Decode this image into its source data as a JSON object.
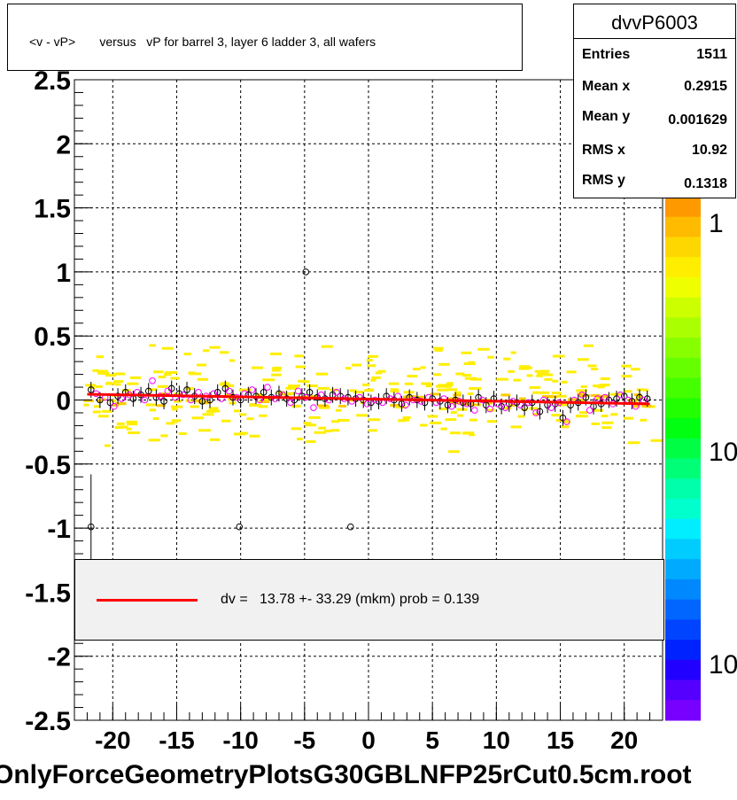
{
  "title": "<v - vP>       versus   vP for barrel 3, layer 6 ladder 3, all wafers",
  "stats": {
    "name": "dvvP6003",
    "rows": [
      {
        "label": "Entries",
        "value": "1511"
      },
      {
        "label": "Mean x",
        "value": "0.2915"
      },
      {
        "label": "Mean y",
        "value": "0.001629"
      },
      {
        "label": "RMS x",
        "value": "10.92"
      },
      {
        "label": "RMS y",
        "value": "0.1318"
      }
    ]
  },
  "legend": {
    "fit_label": "dv =   13.78 +- 33.29 (mkm) prob = 0.139",
    "fit_color": "#ff0000"
  },
  "footer": "OnlyForceGeometryPlotsG30GBLNFP25rCut0.5cm.root",
  "chart_data": {
    "type": "scatter",
    "title": "<v - vP>       versus   vP for barrel 3, layer 6 ladder 3, all wafers",
    "xlim": [
      -23,
      23
    ],
    "ylim": [
      -2.5,
      2.5
    ],
    "x_ticks": [
      "-20",
      "-15",
      "-10",
      "-5",
      "0",
      "5",
      "10",
      "15",
      "20"
    ],
    "y_ticks": [
      "2.5",
      "2",
      "1.5",
      "1",
      "0.5",
      "0",
      "-0.5",
      "-1",
      "-1.5",
      "-2",
      "-2.5"
    ],
    "grid": true,
    "palette_labels": [
      "1",
      "10",
      "10"
    ],
    "fit_line": {
      "x": [
        -22,
        22
      ],
      "y": [
        0.045,
        -0.03
      ],
      "color": "#ff0000"
    },
    "profile_black": {
      "x": [
        -21.7,
        -21,
        -20.2,
        -19.6,
        -19,
        -18.4,
        -17.8,
        -17.2,
        -16.6,
        -16,
        -15.4,
        -14.8,
        -14.2,
        -13.6,
        -13,
        -12.4,
        -11.8,
        -11.2,
        -10.6,
        -10,
        -9.4,
        -8.8,
        -8.2,
        -7.6,
        -7,
        -6.4,
        -5.8,
        -5.2,
        -4.6,
        -4,
        -3.4,
        -2.8,
        -2.2,
        -1.6,
        -1,
        -0.4,
        0.2,
        0.8,
        1.4,
        2,
        2.6,
        3.2,
        3.8,
        4.4,
        5,
        5.6,
        6.2,
        6.8,
        7.4,
        8,
        8.6,
        9.2,
        9.8,
        10.4,
        11,
        11.6,
        12.2,
        12.8,
        13.4,
        14,
        14.6,
        15.2,
        15.8,
        16.4,
        17,
        17.6,
        18.2,
        18.8,
        19.4,
        20,
        20.6,
        21.2,
        21.8
      ],
      "y": [
        0.08,
        0.0,
        -0.02,
        0.03,
        0.06,
        0.01,
        0.04,
        0.07,
        0.02,
        -0.01,
        0.09,
        0.05,
        0.08,
        0.03,
        -0.01,
        0.0,
        0.06,
        0.09,
        0.02,
        0.0,
        0.04,
        0.03,
        0.06,
        0.02,
        0.05,
        0.01,
        0.0,
        0.03,
        0.06,
        0.02,
        0.01,
        0.04,
        0.03,
        0.02,
        0.01,
        0.0,
        -0.02,
        -0.01,
        0.03,
        0.0,
        -0.03,
        0.02,
        0.0,
        -0.02,
        0.01,
        -0.01,
        -0.04,
        0.0,
        -0.02,
        -0.03,
        0.02,
        -0.04,
        0.01,
        -0.05,
        -0.03,
        -0.02,
        -0.06,
        -0.02,
        -0.09,
        -0.04,
        -0.03,
        -0.14,
        -0.04,
        -0.02,
        0.02,
        -0.05,
        -0.03,
        0.0,
        0.01,
        0.03,
        -0.01,
        0.02,
        0.01
      ]
    },
    "profile_magenta": {
      "x": [
        -21.3,
        -20.6,
        -19.9,
        -19.3,
        -18.7,
        -18.1,
        -17.5,
        -16.9,
        -16.3,
        -15.7,
        -15.1,
        -14.5,
        -13.9,
        -13.3,
        -12.7,
        -12.1,
        -11.5,
        -10.9,
        -10.3,
        -9.7,
        -9.1,
        -8.5,
        -7.9,
        -7.3,
        -6.7,
        -6.1,
        -5.5,
        -4.9,
        -4.3,
        -3.7,
        -3.1,
        -2.5,
        -1.9,
        -1.3,
        -0.7,
        -0.1,
        0.5,
        1.1,
        1.7,
        2.3,
        2.9,
        3.5,
        4.1,
        4.7,
        5.3,
        5.9,
        6.5,
        7.1,
        7.7,
        8.3,
        8.9,
        9.5,
        10.1,
        10.7,
        11.3,
        11.9,
        12.5,
        13.1,
        13.7,
        14.3,
        14.9,
        15.5,
        16.1,
        16.7,
        17.3,
        17.9,
        18.5,
        19.1,
        19.7,
        20.3,
        20.9,
        21.5
      ],
      "y": [
        0.05,
        0.02,
        -0.05,
        0.01,
        0.04,
        0.06,
        0.0,
        0.15,
        0.03,
        0.07,
        0.02,
        0.04,
        0.0,
        0.06,
        0.03,
        0.05,
        0.01,
        0.07,
        0.02,
        0.05,
        0.08,
        0.0,
        0.1,
        0.01,
        0.04,
        -0.02,
        0.07,
        0.02,
        -0.06,
        0.04,
        0.0,
        0.06,
        0.01,
        -0.01,
        0.02,
        -0.03,
        0.0,
        -0.02,
        0.01,
        0.03,
        -0.04,
        0.0,
        -0.01,
        0.02,
        -0.02,
        0.01,
        -0.05,
        -0.01,
        -0.03,
        -0.08,
        0.0,
        -0.07,
        -0.03,
        -0.06,
        -0.01,
        -0.04,
        -0.02,
        -0.1,
        0.0,
        -0.06,
        -0.02,
        -0.17,
        0.0,
        0.04,
        -0.08,
        0.01,
        0.02,
        -0.03,
        0.04,
        0.0,
        -0.05,
        0.0
      ]
    },
    "outliers": {
      "x": [
        -4.9,
        -21.7,
        -10.1,
        -1.4
      ],
      "y": [
        1.0,
        -0.99,
        -0.99,
        -0.99
      ]
    }
  }
}
